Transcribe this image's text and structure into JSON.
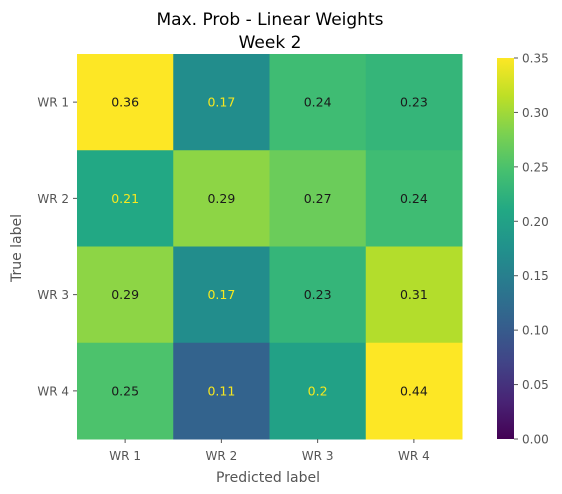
{
  "chart_data": {
    "type": "heatmap",
    "title": [
      "Max. Prob - Linear Weights",
      "Week 2"
    ],
    "xlabel": "Predicted label",
    "ylabel": "True label",
    "x_categories": [
      "WR 1",
      "WR 2",
      "WR 3",
      "WR 4"
    ],
    "y_categories": [
      "WR 1",
      "WR 2",
      "WR 3",
      "WR 4"
    ],
    "values": [
      [
        0.36,
        0.17,
        0.24,
        0.23
      ],
      [
        0.21,
        0.29,
        0.27,
        0.24
      ],
      [
        0.29,
        0.17,
        0.23,
        0.31
      ],
      [
        0.25,
        0.11,
        0.2,
        0.44
      ]
    ],
    "value_labels": [
      [
        "0.36",
        "0.17",
        "0.24",
        "0.23"
      ],
      [
        "0.21",
        "0.29",
        "0.27",
        "0.24"
      ],
      [
        "0.29",
        "0.17",
        "0.23",
        "0.31"
      ],
      [
        "0.25",
        "0.11",
        "0.2",
        "0.44"
      ]
    ],
    "colormap": "viridis",
    "color_range": [
      0.0,
      0.35
    ],
    "colorbar_ticks": [
      "0.00",
      "0.05",
      "0.10",
      "0.15",
      "0.20",
      "0.25",
      "0.30",
      "0.35"
    ],
    "colorbar_tick_values": [
      0.0,
      0.05,
      0.1,
      0.15,
      0.2,
      0.25,
      0.3,
      0.35
    ],
    "text_color_light": "#f7e81f",
    "text_color_dark": "#1a1a1a",
    "grid": false
  }
}
